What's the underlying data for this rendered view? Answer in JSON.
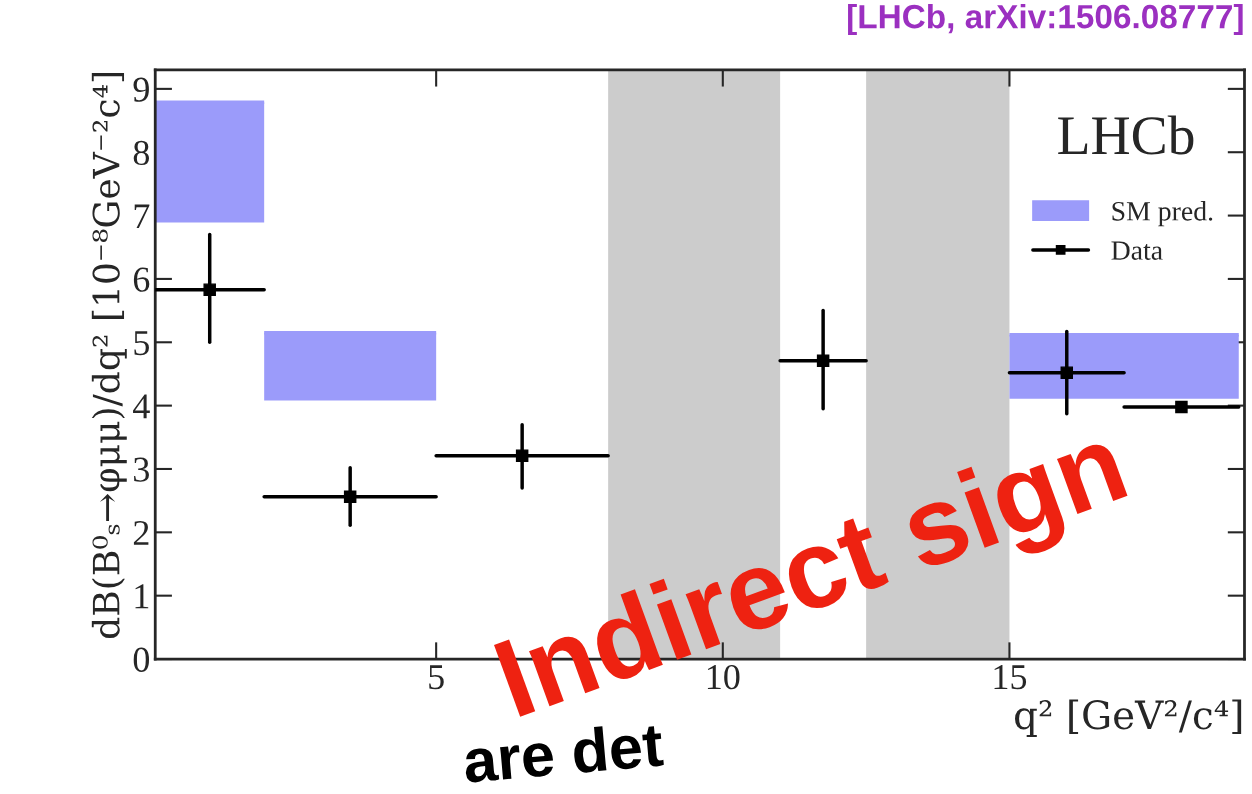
{
  "chart_data": {
    "type": "scatter",
    "title": "[LHCb, arXiv:1506.08777]",
    "xlabel": "q² [GeV²/c⁴]",
    "ylabel": "dB(B⁰ₛ→φμμ)/dq² [10⁻⁸GeV⁻²c⁴]",
    "annotations": [
      "LHCb",
      "Indirect sign",
      "are det"
    ],
    "series": [
      {
        "name": "SM pred.",
        "type": "bar",
        "color": "#9b9bfa",
        "x": [
          1.05,
          3.5,
          17
        ],
        "xerrors": [
          0.95,
          1.5,
          2
        ],
        "base": [
          6.89,
          4.08,
          4.11
        ],
        "values": [
          1.9,
          1.07,
          1.01
        ]
      },
      {
        "name": "Data",
        "color": "#000000",
        "marker": "square",
        "x": [
          1.05,
          3.5,
          6.5,
          11.75,
          16,
          18
        ],
        "xerrors": [
          0.95,
          1.5,
          1.5,
          0.75,
          1,
          1
        ],
        "values": [
          5.83,
          2.56,
          3.21,
          4.71,
          4.52,
          3.98
        ],
        "errors": [
          [
            5.0,
            6.7
          ],
          [
            2.11,
            3.02
          ],
          [
            2.7,
            3.7
          ],
          [
            3.95,
            5.5
          ],
          [
            3.87,
            5.17
          ],
          null
        ]
      }
    ],
    "bands": [
      {
        "axis": "x",
        "from": 8,
        "to": 11,
        "color": "#cccccc"
      },
      {
        "axis": "x",
        "from": 12.5,
        "to": 15,
        "color": "#cccccc"
      }
    ],
    "xlim": [
      0.1,
      19.1
    ],
    "ylim": [
      0,
      9.3
    ],
    "xticks": [
      5,
      10,
      15
    ],
    "yticks": [
      0,
      1,
      2,
      3,
      4,
      5,
      6,
      7,
      8,
      9
    ],
    "grid": false,
    "legend": "top right"
  }
}
